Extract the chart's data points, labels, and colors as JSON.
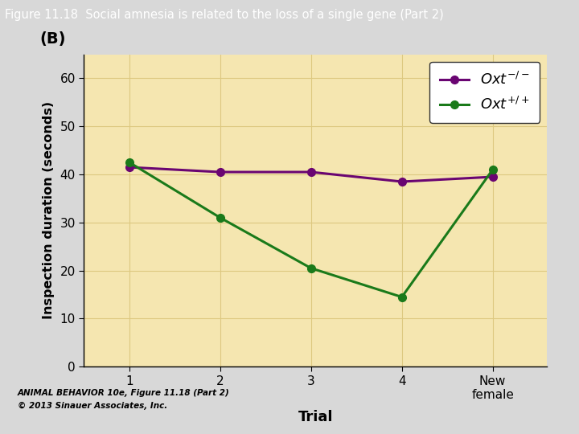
{
  "title": "Figure 11.18  Social amnesia is related to the loss of a single gene (Part 2)",
  "title_bg_color": "#5aacb8",
  "panel_label": "(B)",
  "xlabel": "Trial",
  "ylabel": "Inspection duration (seconds)",
  "plot_bg_color": "#f5e6b0",
  "fig_bg_color": "#d8d8d8",
  "ylim": [
    0,
    65
  ],
  "yticks": [
    0,
    10,
    20,
    30,
    40,
    50,
    60
  ],
  "xtick_labels": [
    "1",
    "2",
    "3",
    "4",
    "New\nfemale"
  ],
  "xtick_positions": [
    1,
    2,
    3,
    4,
    5
  ],
  "oxt_minus_x": [
    1,
    2,
    3,
    4,
    5
  ],
  "oxt_minus_y": [
    41.5,
    40.5,
    40.5,
    38.5,
    39.5
  ],
  "oxt_plus_x": [
    1,
    2,
    3,
    4,
    5
  ],
  "oxt_plus_y": [
    42.5,
    31.0,
    20.5,
    14.5,
    41.0
  ],
  "oxt_minus_color": "#6a0572",
  "oxt_plus_color": "#1a7a1a",
  "line_width": 2.2,
  "marker_size": 7,
  "footer_line1": "ANIMAL BEHAVIOR 10e, Figure 11.18 (Part 2)",
  "footer_line2": "© 2013 Sinauer Associates, Inc.",
  "grid_color": "#ddc880",
  "title_text_color": "#ffffff"
}
